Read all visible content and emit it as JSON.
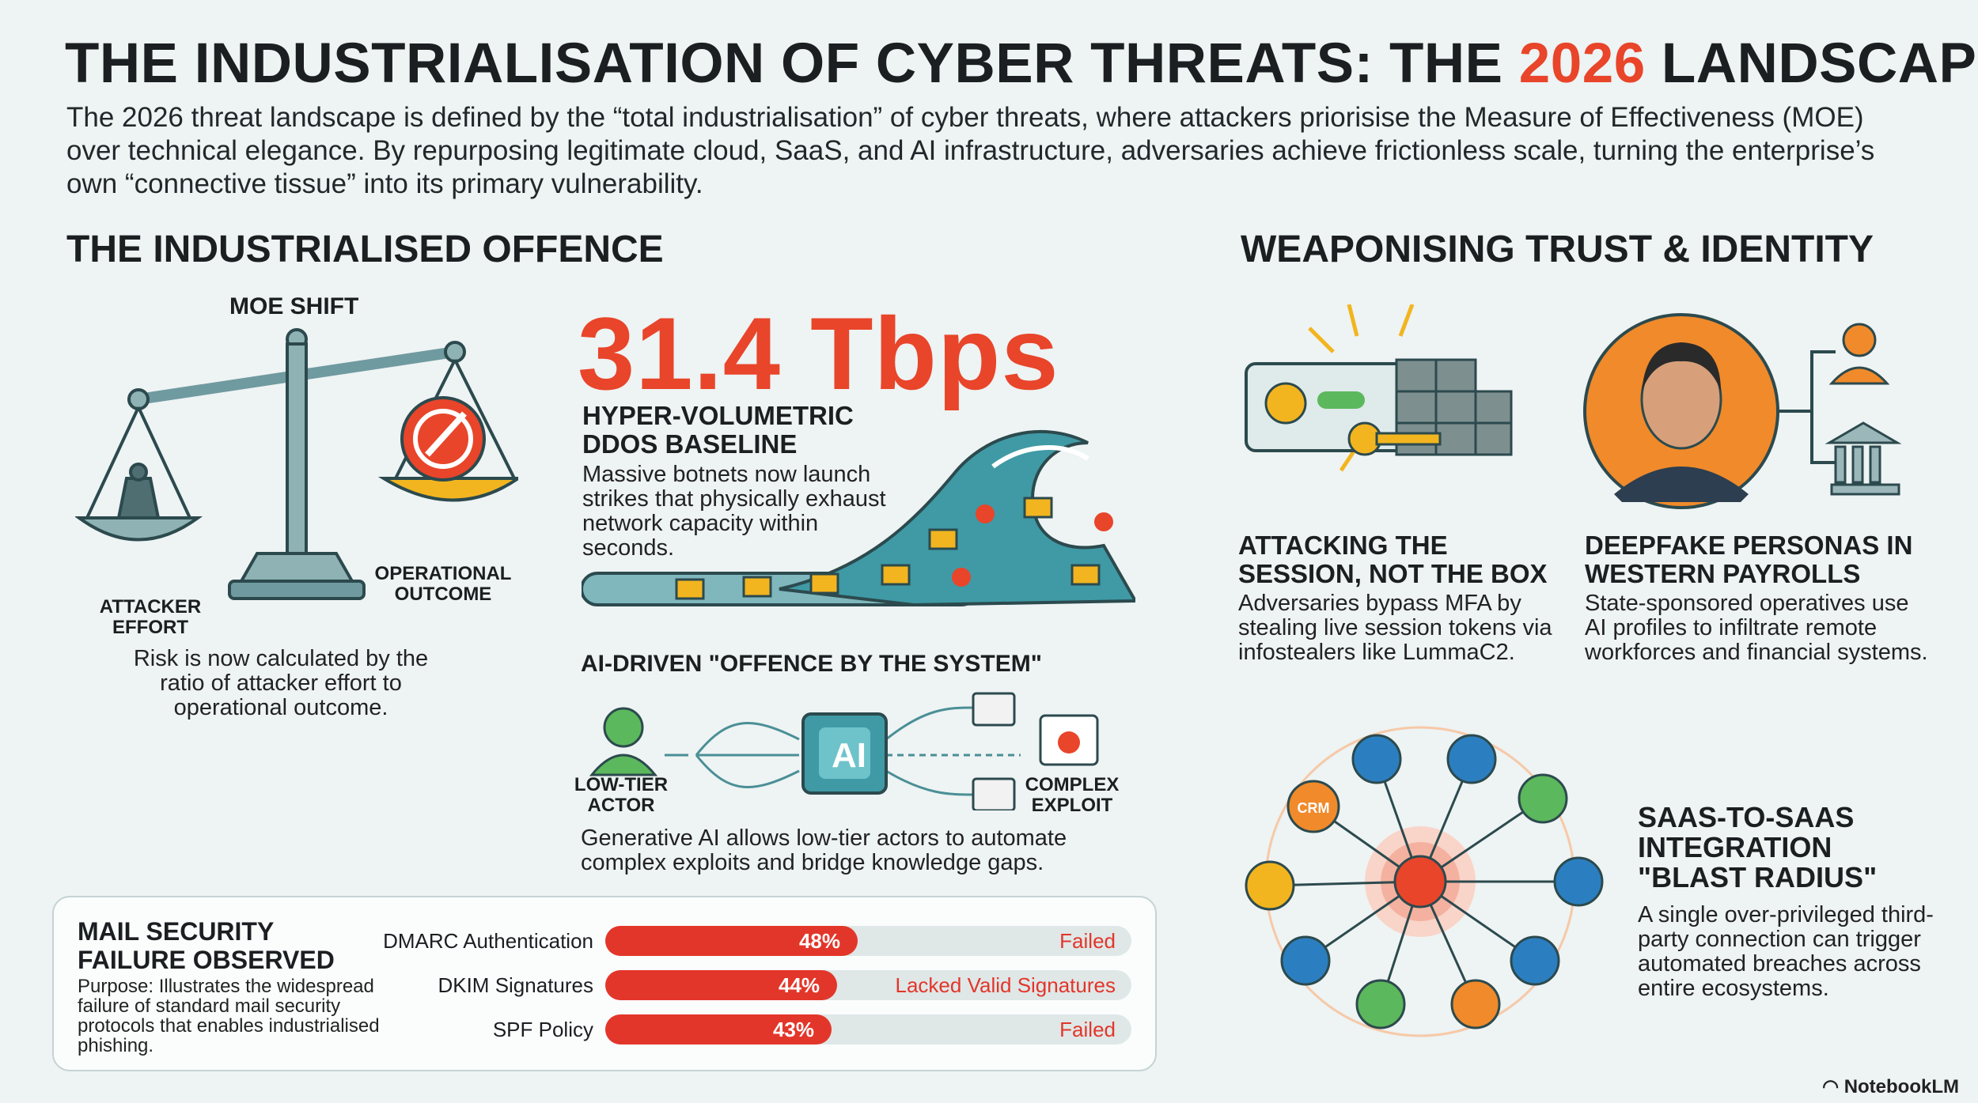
{
  "title": {
    "before": "THE INDUSTRIALISATION OF CYBER THREATS: THE ",
    "accent": "2026",
    "after": " LANDSCAPE"
  },
  "intro": "The 2026 threat landscape is defined by the “total industrialisation” of cyber threats, where attackers priorisise the Measure of Effectiveness (MOE) over technical elegance. By repurposing legitimate cloud, SaaS, and AI infrastructure, adversaries achieve frictionless scale, turning the enterprise’s own “connective tissue” into its primary vulnerability.",
  "offence": {
    "heading": "THE INDUSTRIALISED OFFENCE",
    "moe": {
      "label": "MOE SHIFT",
      "left_label": "ATTACKER EFFORT",
      "right_label": "OPERATIONAL OUTCOME",
      "caption": "Risk is now calculated by the ratio of attacker effort to operational outcome."
    },
    "ddos": {
      "stat": "31.4 Tbps",
      "title": "HYPER-VOLUMETRIC DDOS BASELINE",
      "body": "Massive botnets now launch strikes that physically exhaust network capacity within seconds."
    },
    "ai": {
      "title": "AI-DRIVEN \"OFFENCE BY THE SYSTEM\"",
      "chip": "AI",
      "left_label": "LOW-TIER ACTOR",
      "right_label": "COMPLEX EXPLOIT",
      "body": "Generative AI allows low-tier actors to automate complex exploits and bridge knowledge gaps."
    }
  },
  "mail": {
    "title": "MAIL SECURITY FAILURE OBSERVED",
    "purpose": "Purpose: Illustrates the widespread failure of standard mail security protocols that enables industrialised phishing.",
    "rows": [
      {
        "label": "DMARC Authentication",
        "value": 48,
        "value_text": "48%",
        "outcome": "Failed"
      },
      {
        "label": "DKIM Signatures",
        "value": 44,
        "value_text": "44%",
        "outcome": "Lacked Valid Signatures"
      },
      {
        "label": "SPF Policy",
        "value": 43,
        "value_text": "43%",
        "outcome": "Failed"
      }
    ]
  },
  "trust": {
    "heading": "WEAPONISING TRUST & IDENTITY",
    "session": {
      "title": "ATTACKING THE SESSION, NOT THE BOX",
      "body": "Adversaries bypass MFA by stealing live session tokens via infostealers like LummaC2."
    },
    "deepfake": {
      "title": "DEEPFAKE PERSONAS IN WESTERN PAYROLLS",
      "body": "State-sponsored operatives use AI profiles to infiltrate remote workforces and financial systems."
    },
    "saas": {
      "title": "SAAS-TO-SAAS INTEGRATION \"BLAST RADIUS\"",
      "body": "A single over-privileged third-party connection can trigger automated breaches across entire ecosystems.",
      "crm": "CRM"
    }
  },
  "brand": "NotebookLM",
  "colors": {
    "accent": "#e8452a",
    "teal": "#4a8f96",
    "orange": "#f08a2b",
    "yellow": "#f2b51f",
    "green": "#5cb85c",
    "blue": "#2b7fc1"
  }
}
